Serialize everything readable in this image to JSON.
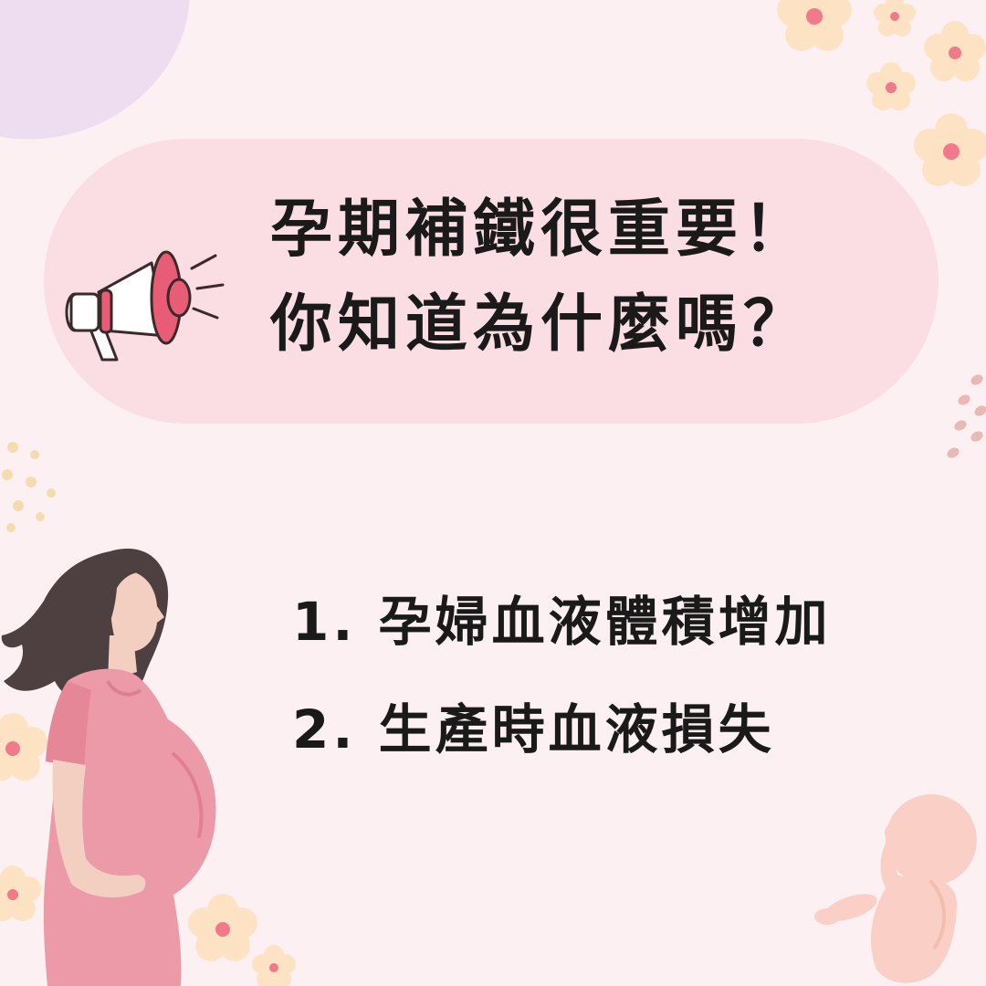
{
  "headline": {
    "line1": "孕期補鐵很重要！",
    "line2": "你知道為什麼嗎？"
  },
  "reasons": [
    "1. 孕婦血液體積增加",
    "2. 生產時血液損失"
  ],
  "icons": {
    "megaphone": "megaphone-icon",
    "woman": "pregnant-woman-illustration",
    "fetus": "fetus-illustration",
    "flowers": "flower-icon"
  },
  "colors": {
    "background": "#fcf0f2",
    "banner": "#fbdde4",
    "accent": "#e85d75",
    "text": "#1a1a1a"
  }
}
